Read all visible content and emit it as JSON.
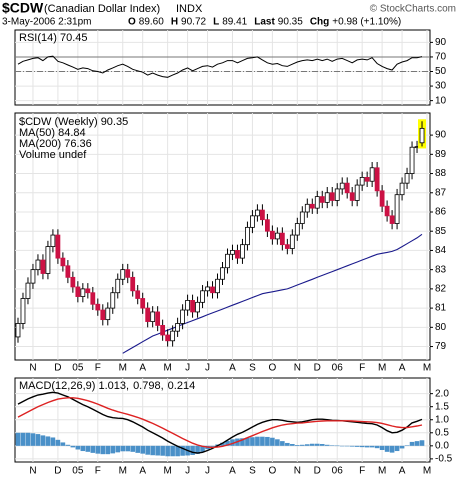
{
  "header": {
    "symbol": "$CDW",
    "name": "(Canadian Dollar Index)",
    "exchange": "INDX",
    "copyright": "© StockCharts.com",
    "date": "3-May-2006 2:31pm",
    "quote": [
      {
        "label": "O",
        "value": "89.60"
      },
      {
        "label": "H",
        "value": "90.72"
      },
      {
        "label": "L",
        "value": "89.41"
      },
      {
        "label": "Last",
        "value": "90.35"
      },
      {
        "label": "Chg",
        "value": "+0.98 (+1.10%)"
      }
    ]
  },
  "chart_data": [
    {
      "type": "line",
      "legend": [
        {
          "text": "RSI(14) 70.45",
          "color": "#000000"
        }
      ],
      "color": "#000000",
      "ylim": [
        4,
        107
      ],
      "yticks": [
        90,
        70,
        50,
        30,
        10
      ],
      "ref_lines": [
        70,
        50
      ],
      "grid": true,
      "values": [
        60,
        64,
        66,
        68,
        69,
        65,
        70,
        71,
        64,
        62,
        59,
        56,
        53,
        55,
        54,
        51,
        50,
        48,
        52,
        55,
        58,
        60,
        57,
        53,
        51,
        49,
        45,
        48,
        45,
        43,
        42,
        45,
        48,
        52,
        55,
        51,
        54,
        57,
        58,
        56,
        60,
        62,
        65,
        65,
        62,
        65,
        68,
        69,
        70,
        66,
        62,
        60,
        61,
        58,
        57,
        60,
        63,
        65,
        66,
        65,
        67,
        65,
        67,
        64,
        67,
        68,
        65,
        62,
        66,
        67,
        66,
        69,
        61,
        57,
        54,
        52,
        60,
        63,
        65,
        69,
        69,
        70.45
      ]
    },
    {
      "type": "candlestick",
      "xlim": [
        -0.6,
        82.6
      ],
      "ylim": [
        78.3,
        91.15
      ],
      "yticks": [
        90,
        89,
        88,
        87,
        86,
        85,
        84,
        83,
        82,
        81,
        80,
        79
      ],
      "grid": true,
      "xticks": [
        {
          "value": 3,
          "label": "N"
        },
        {
          "value": 8,
          "label": "D"
        },
        {
          "value": 12,
          "label": "05"
        },
        {
          "value": 16,
          "label": "F"
        },
        {
          "value": 21,
          "label": "M"
        },
        {
          "value": 25,
          "label": "A"
        },
        {
          "value": 30,
          "label": "M"
        },
        {
          "value": 34,
          "label": "J"
        },
        {
          "value": 38,
          "label": "J"
        },
        {
          "value": 43,
          "label": "A"
        },
        {
          "value": 47,
          "label": "S"
        },
        {
          "value": 51,
          "label": "O"
        },
        {
          "value": 56,
          "label": "N"
        },
        {
          "value": 60,
          "label": "D"
        },
        {
          "value": 64,
          "label": "06"
        },
        {
          "value": 69,
          "label": "F"
        },
        {
          "value": 73,
          "label": "M"
        },
        {
          "value": 77,
          "label": "A"
        },
        {
          "value": 82,
          "label": "M"
        }
      ],
      "legend": [
        {
          "text": "$CDW (Weekly) 90.35",
          "color": "#000000"
        },
        {
          "text": "MA(50) 84.84",
          "color": "#1a1a8c"
        },
        {
          "text": "MA(200) 76.36",
          "color": "#dd2222"
        },
        {
          "text": "Volume undef",
          "color": "#444444"
        }
      ],
      "up_color": "#ffffff",
      "down_color": "#cc1144",
      "outline": "#000000",
      "highlight_color": "#ffff00",
      "open": [
        79.5,
        80.2,
        81.5,
        82.3,
        83.0,
        83.5,
        82.8,
        84.2,
        84.8,
        83.6,
        83.2,
        82.6,
        82.1,
        81.6,
        82.0,
        81.8,
        81.2,
        80.9,
        80.4,
        81.0,
        81.8,
        82.5,
        83.0,
        82.6,
        81.9,
        81.5,
        81.0,
        80.3,
        80.8,
        80.1,
        79.6,
        79.3,
        79.8,
        80.2,
        80.9,
        81.4,
        80.8,
        81.3,
        81.9,
        82.1,
        81.8,
        82.5,
        83.1,
        83.8,
        84.0,
        83.6,
        84.3,
        85.2,
        85.8,
        86.1,
        85.6,
        85.0,
        84.6,
        84.9,
        84.3,
        84.1,
        84.8,
        85.4,
        86.0,
        86.4,
        86.2,
        86.8,
        86.5,
        87.0,
        86.6,
        87.2,
        87.5,
        87.0,
        86.6,
        87.4,
        87.8,
        87.6,
        88.3,
        87.1,
        86.3,
        85.8,
        85.4,
        86.9,
        87.5,
        88.0,
        89.37,
        89.6
      ],
      "high": [
        80.5,
        81.8,
        82.6,
        83.3,
        83.8,
        83.8,
        84.5,
        85.1,
        85.1,
        83.9,
        83.5,
        82.9,
        82.4,
        82.3,
        82.3,
        82.1,
        81.5,
        81.2,
        81.3,
        82.1,
        82.8,
        83.3,
        83.3,
        82.9,
        82.2,
        81.8,
        81.3,
        81.1,
        81.1,
        80.4,
        79.9,
        80.1,
        80.5,
        81.2,
        81.7,
        81.7,
        81.6,
        82.2,
        82.4,
        82.4,
        82.8,
        83.4,
        84.1,
        84.3,
        84.3,
        84.6,
        85.5,
        86.1,
        86.4,
        86.4,
        85.9,
        85.3,
        85.2,
        85.2,
        84.6,
        85.1,
        85.7,
        86.3,
        86.7,
        86.7,
        87.1,
        87.1,
        87.3,
        87.3,
        87.5,
        87.8,
        87.8,
        87.3,
        87.7,
        88.1,
        88.1,
        88.6,
        88.6,
        87.4,
        86.6,
        86.1,
        87.2,
        87.8,
        88.3,
        89.67,
        89.7,
        90.72
      ],
      "low": [
        79.2,
        79.9,
        81.2,
        82.0,
        82.7,
        82.5,
        82.5,
        83.9,
        83.3,
        82.9,
        82.3,
        81.8,
        81.3,
        81.3,
        81.5,
        80.9,
        80.6,
        80.1,
        80.1,
        80.7,
        81.5,
        82.2,
        82.3,
        81.6,
        81.2,
        80.7,
        80.0,
        80.0,
        79.8,
        79.3,
        79.0,
        79.0,
        79.5,
        79.9,
        80.6,
        80.5,
        80.5,
        81.0,
        81.6,
        81.5,
        81.5,
        82.2,
        82.8,
        83.5,
        83.3,
        83.3,
        84.0,
        84.9,
        85.5,
        85.3,
        84.7,
        84.3,
        84.3,
        84.0,
        83.8,
        83.8,
        84.5,
        85.1,
        85.7,
        85.9,
        85.9,
        86.2,
        86.2,
        86.3,
        86.3,
        86.9,
        86.7,
        86.3,
        86.3,
        87.1,
        87.3,
        87.3,
        86.8,
        86.0,
        85.5,
        85.1,
        85.1,
        86.6,
        87.2,
        87.7,
        89.07,
        89.41
      ],
      "close": [
        80.2,
        81.5,
        82.3,
        83.0,
        83.5,
        82.8,
        84.2,
        84.8,
        83.6,
        83.2,
        82.6,
        82.1,
        81.6,
        82.0,
        81.8,
        81.2,
        80.9,
        80.4,
        81.0,
        81.8,
        82.5,
        83.0,
        82.6,
        81.9,
        81.5,
        81.0,
        80.3,
        80.8,
        80.1,
        79.6,
        79.3,
        79.8,
        80.2,
        80.9,
        81.4,
        80.8,
        81.3,
        81.9,
        82.1,
        81.8,
        82.5,
        83.1,
        83.8,
        84.0,
        83.6,
        84.3,
        85.2,
        85.8,
        86.1,
        85.6,
        85.0,
        84.6,
        84.9,
        84.3,
        84.1,
        84.8,
        85.4,
        86.0,
        86.4,
        86.2,
        86.8,
        86.5,
        87.0,
        86.6,
        87.2,
        87.5,
        87.0,
        86.6,
        87.4,
        87.8,
        87.6,
        88.3,
        87.1,
        86.3,
        85.8,
        85.4,
        86.9,
        87.5,
        88.0,
        89.37,
        89.4,
        90.35
      ],
      "series": [
        {
          "color": "#1a1a8c",
          "values": [
            null,
            null,
            null,
            null,
            null,
            null,
            null,
            null,
            null,
            null,
            null,
            null,
            null,
            null,
            null,
            null,
            null,
            null,
            null,
            null,
            null,
            78.65,
            78.8,
            78.95,
            79.1,
            79.25,
            79.4,
            79.55,
            79.65,
            79.75,
            79.85,
            79.95,
            80.05,
            80.15,
            80.25,
            80.35,
            80.45,
            80.55,
            80.65,
            80.75,
            80.85,
            80.95,
            81.05,
            81.15,
            81.25,
            81.35,
            81.45,
            81.55,
            81.65,
            81.75,
            81.8,
            81.85,
            81.9,
            81.95,
            82.0,
            82.1,
            82.2,
            82.3,
            82.4,
            82.5,
            82.6,
            82.7,
            82.8,
            82.9,
            83.0,
            83.1,
            83.2,
            83.3,
            83.4,
            83.5,
            83.6,
            83.7,
            83.8,
            83.85,
            83.9,
            83.95,
            84.05,
            84.2,
            84.35,
            84.5,
            84.65,
            84.84
          ]
        }
      ]
    },
    {
      "type": "line",
      "legend": [
        {
          "text": "MACD(12,26,9) 1.013,",
          "color": "#000000"
        },
        {
          "text": "0.798,",
          "color": "#dd2222"
        },
        {
          "text": "0.214",
          "color": "#3388cc"
        }
      ],
      "ylim": [
        -0.62,
        2.6
      ],
      "grid": true,
      "yticks": [
        {
          "value": 2,
          "label": "2.0"
        },
        1.5,
        {
          "value": 1,
          "label": "1.0"
        },
        0.5,
        {
          "value": 0,
          "label": "0.0"
        },
        -0.5
      ],
      "series": [
        {
          "type": "bar",
          "color": "#4a90c8",
          "values": [
            0.5,
            0.5,
            0.5,
            0.48,
            0.45,
            0.4,
            0.36,
            0.32,
            0.23,
            0.13,
            0.04,
            -0.06,
            -0.14,
            -0.2,
            -0.23,
            -0.27,
            -0.3,
            -0.32,
            -0.32,
            -0.29,
            -0.25,
            -0.21,
            -0.21,
            -0.23,
            -0.27,
            -0.3,
            -0.34,
            -0.36,
            -0.37,
            -0.38,
            -0.4,
            -0.4,
            -0.4,
            -0.38,
            -0.37,
            -0.35,
            -0.31,
            -0.23,
            -0.13,
            -0.04,
            0.05,
            0.12,
            0.19,
            0.25,
            0.28,
            0.29,
            0.31,
            0.33,
            0.35,
            0.35,
            0.34,
            0.31,
            0.25,
            0.18,
            0.11,
            0.07,
            0.03,
            0.04,
            0.06,
            0.08,
            0.08,
            0.07,
            0.04,
            0.02,
            0.01,
            0.0,
            -0.02,
            -0.03,
            -0.04,
            -0.05,
            -0.06,
            -0.06,
            -0.09,
            -0.16,
            -0.23,
            -0.26,
            -0.2,
            -0.1,
            0.02,
            0.15,
            0.18,
            0.214
          ]
        },
        {
          "type": "line",
          "color": "#000000",
          "values": [
            1.6,
            1.7,
            1.8,
            1.88,
            1.95,
            1.98,
            2.02,
            2.05,
            2.02,
            1.95,
            1.88,
            1.78,
            1.68,
            1.58,
            1.5,
            1.4,
            1.3,
            1.2,
            1.12,
            1.08,
            1.06,
            1.05,
            1.0,
            0.92,
            0.82,
            0.72,
            0.6,
            0.5,
            0.4,
            0.3,
            0.18,
            0.08,
            -0.02,
            -0.1,
            -0.18,
            -0.25,
            -0.28,
            -0.25,
            -0.18,
            -0.1,
            0.0,
            0.1,
            0.22,
            0.34,
            0.44,
            0.52,
            0.62,
            0.72,
            0.82,
            0.9,
            0.96,
            1.0,
            1.0,
            0.98,
            0.94,
            0.92,
            0.9,
            0.92,
            0.96,
            1.0,
            1.02,
            1.02,
            1.0,
            0.98,
            0.97,
            0.96,
            0.94,
            0.92,
            0.9,
            0.88,
            0.86,
            0.85,
            0.8,
            0.7,
            0.58,
            0.5,
            0.52,
            0.6,
            0.72,
            0.88,
            0.94,
            1.013
          ]
        },
        {
          "type": "line",
          "color": "#dd2222",
          "values": [
            1.1,
            1.2,
            1.3,
            1.4,
            1.5,
            1.58,
            1.66,
            1.73,
            1.79,
            1.82,
            1.84,
            1.84,
            1.82,
            1.78,
            1.73,
            1.67,
            1.6,
            1.52,
            1.44,
            1.37,
            1.31,
            1.26,
            1.21,
            1.15,
            1.09,
            1.02,
            0.94,
            0.86,
            0.77,
            0.68,
            0.58,
            0.48,
            0.38,
            0.28,
            0.19,
            0.1,
            0.03,
            -0.02,
            -0.05,
            -0.06,
            -0.05,
            -0.02,
            0.03,
            0.09,
            0.16,
            0.23,
            0.31,
            0.39,
            0.47,
            0.55,
            0.62,
            0.69,
            0.75,
            0.8,
            0.83,
            0.85,
            0.87,
            0.88,
            0.9,
            0.92,
            0.94,
            0.95,
            0.96,
            0.96,
            0.96,
            0.96,
            0.96,
            0.95,
            0.94,
            0.93,
            0.92,
            0.91,
            0.89,
            0.86,
            0.81,
            0.76,
            0.72,
            0.7,
            0.7,
            0.73,
            0.76,
            0.798
          ]
        }
      ]
    }
  ]
}
